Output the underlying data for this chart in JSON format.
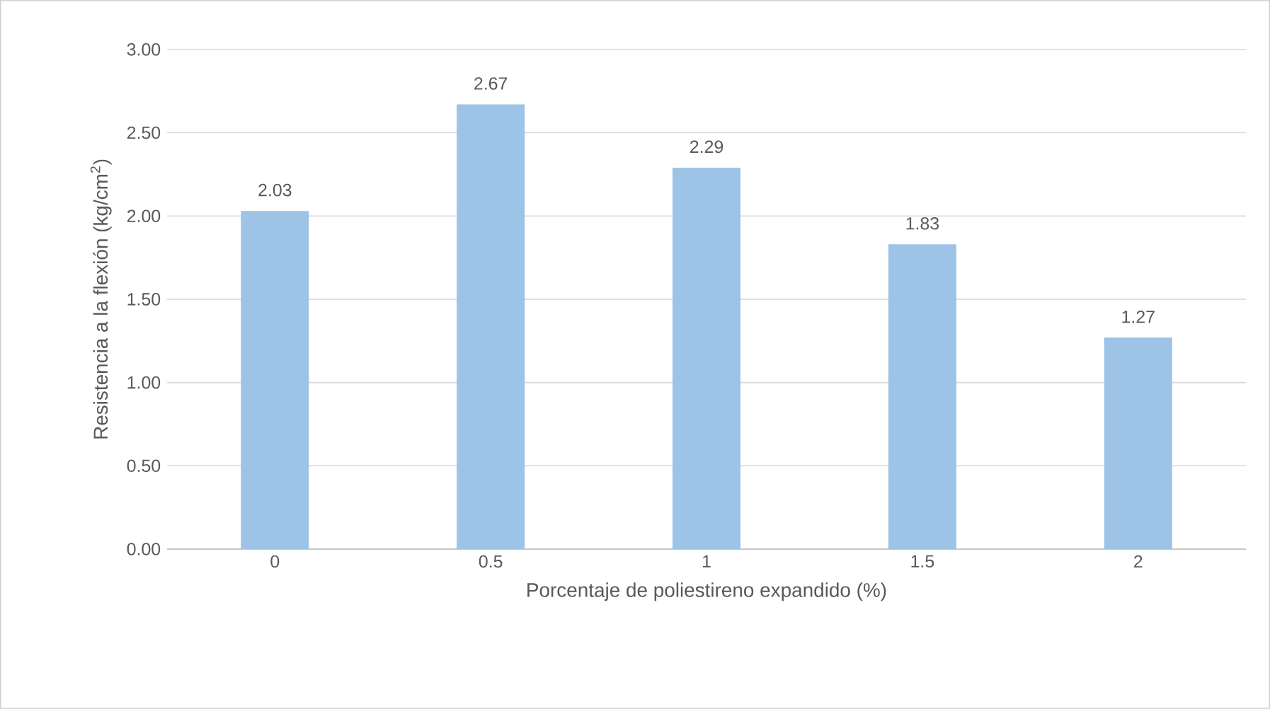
{
  "chart_data": {
    "type": "bar",
    "xlabel": "Porcentaje de poliestireno expandido (%)",
    "ylabel": "Resistencia a la flexión (kg/cm$^{2}$)",
    "categories": [
      "0",
      "0.5",
      "1",
      "1.5",
      "2"
    ],
    "values": [
      2.03,
      2.67,
      2.29,
      1.83,
      1.27
    ],
    "color": "#9dc3e6",
    "ylim": [
      0,
      3
    ],
    "yticks": [
      {
        "value": 0,
        "label": "0.00"
      },
      {
        "value": 0.5,
        "label": "0.50"
      },
      {
        "value": 1,
        "label": "1.00"
      },
      {
        "value": 1.5,
        "label": "1.50"
      },
      {
        "value": 2,
        "label": "2.00"
      },
      {
        "value": 2.5,
        "label": "2.50"
      },
      {
        "value": 3,
        "label": "3.00"
      }
    ],
    "grid": "y",
    "data_labels": true
  }
}
